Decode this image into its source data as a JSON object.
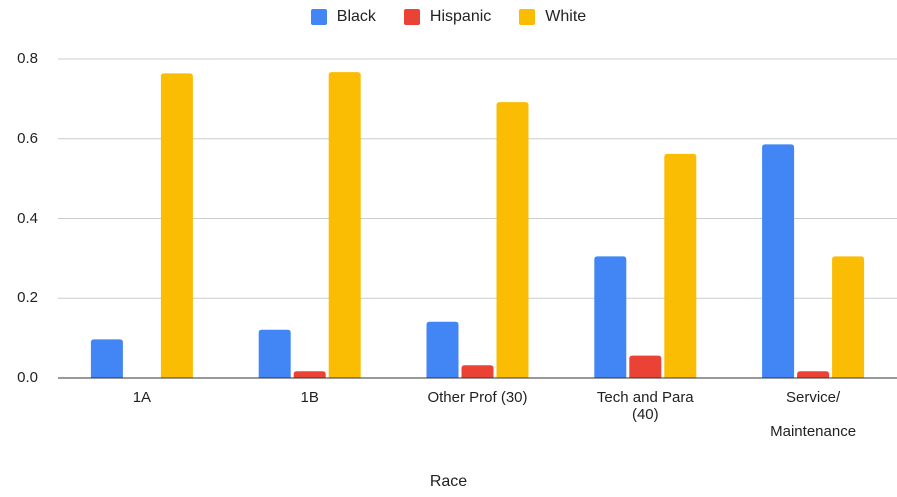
{
  "chart_data": {
    "type": "bar",
    "categories": [
      "1A",
      "1B",
      "Other Prof (30)",
      "Tech and Para\n(40)",
      "Service/\n\nMaintenance"
    ],
    "series": [
      {
        "name": "Black",
        "color": "#4285F4",
        "values": [
          0.097,
          0.121,
          0.141,
          0.305,
          0.586
        ]
      },
      {
        "name": "Hispanic",
        "color": "#EA4335",
        "values": [
          0.0,
          0.017,
          0.032,
          0.056,
          0.017
        ]
      },
      {
        "name": "White",
        "color": "#FBBC04",
        "values": [
          0.764,
          0.767,
          0.692,
          0.562,
          0.305
        ]
      }
    ],
    "ylim": [
      0,
      0.8
    ],
    "yticks": [
      "0.0",
      "0.2",
      "0.4",
      "0.6",
      "0.8"
    ],
    "xlabel": "Race",
    "ylabel": "",
    "legend_position": "top-center",
    "grid": true
  }
}
